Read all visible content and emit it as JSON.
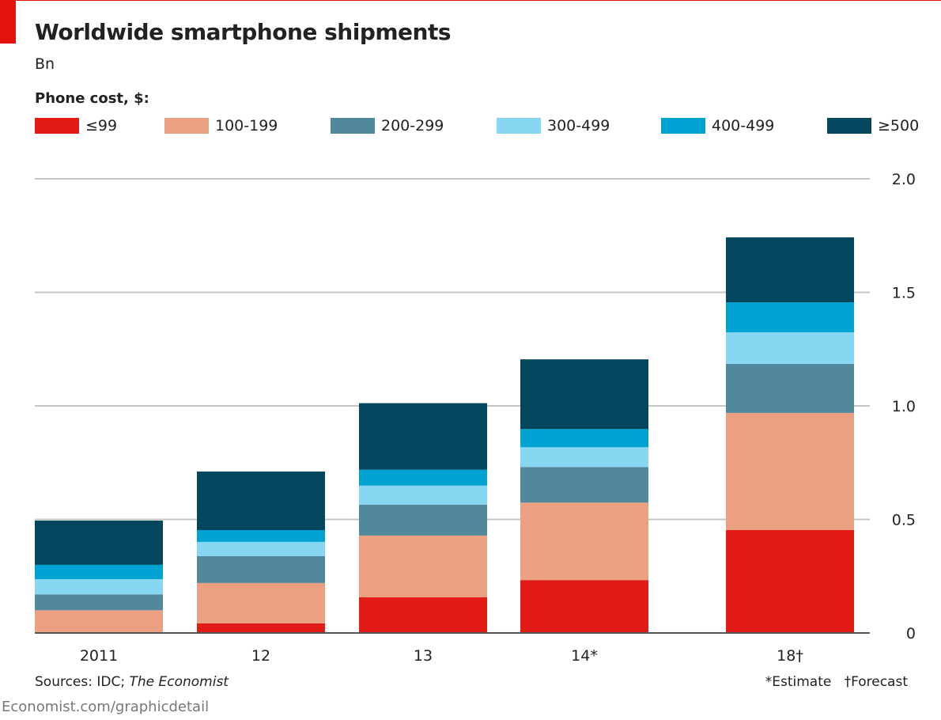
{
  "title": "Worldwide smartphone shipments",
  "unit": "Bn",
  "legend_title": "Phone cost, $:",
  "sources_prefix": "Sources: IDC; ",
  "sources_italic": "The Economist",
  "note_estimate": "*Estimate",
  "note_forecast": "†Forecast",
  "footer": "Economist.com/graphicdetail",
  "chart_data": {
    "type": "bar",
    "stacked": true,
    "title": "Worldwide smartphone shipments",
    "ylabel": "Bn",
    "ylim": [
      0,
      2.0
    ],
    "yticks": [
      "0",
      "0.5",
      "1.0",
      "1.5",
      "2.0"
    ],
    "ytick_values": [
      0,
      0.5,
      1.0,
      1.5,
      2.0
    ],
    "grid": true,
    "axis_side": "right",
    "legend_position": "top",
    "categories": [
      "2011",
      "12",
      "13",
      "14*",
      "18†"
    ],
    "series": [
      {
        "name": "≤99",
        "color": "#e31b17",
        "values": [
          0.0,
          0.042,
          0.157,
          0.233,
          0.453
        ]
      },
      {
        "name": "100-199",
        "color": "#eba081",
        "values": [
          0.1,
          0.178,
          0.272,
          0.341,
          0.516
        ]
      },
      {
        "name": "200-299",
        "color": "#52889c",
        "values": [
          0.07,
          0.118,
          0.136,
          0.157,
          0.216
        ]
      },
      {
        "name": "300-499",
        "color": "#87d6f2",
        "values": [
          0.067,
          0.063,
          0.084,
          0.087,
          0.139
        ]
      },
      {
        "name": "400-499",
        "color": "#00a2d1",
        "values": [
          0.063,
          0.052,
          0.07,
          0.08,
          0.132
        ]
      },
      {
        "name": "≥500",
        "color": "#02475e",
        "values": [
          0.195,
          0.258,
          0.293,
          0.307,
          0.286
        ]
      }
    ]
  }
}
